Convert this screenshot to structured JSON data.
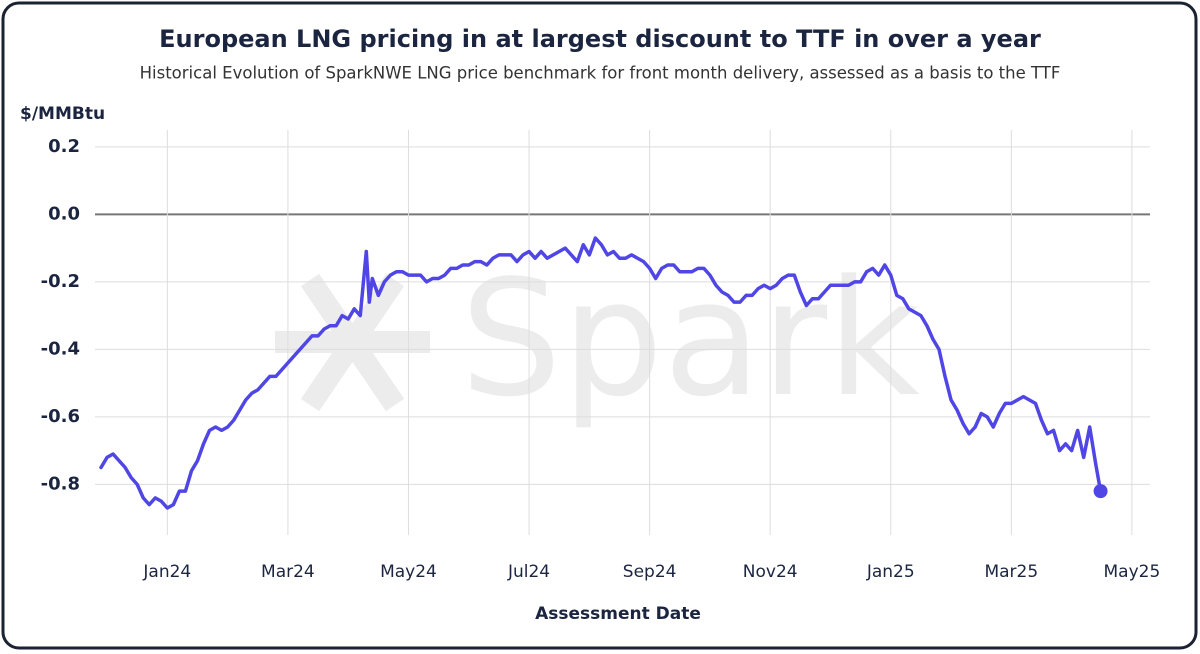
{
  "chart_data": {
    "type": "line",
    "title": "European LNG pricing in at largest discount to TTF in over a year",
    "subtitle": "Historical Evolution of SparkNWE LNG price benchmark for front month delivery, assessed as a basis to the TTF",
    "y_label": "$/MMBtu",
    "x_label": "Assessment Date",
    "watermark": "Spark",
    "color": "#4f46e5",
    "grid": true,
    "zero_line": true,
    "end_marker": true,
    "xlim": [
      -1.2,
      16.3
    ],
    "ylim": [
      -0.95,
      0.25
    ],
    "xticks": [
      {
        "value": 0,
        "label": "Jan24"
      },
      {
        "value": 2,
        "label": "Mar24"
      },
      {
        "value": 4,
        "label": "May24"
      },
      {
        "value": 6,
        "label": "Jul24"
      },
      {
        "value": 8,
        "label": "Sep24"
      },
      {
        "value": 10,
        "label": "Nov24"
      },
      {
        "value": 12,
        "label": "Jan25"
      },
      {
        "value": 14,
        "label": "Mar25"
      },
      {
        "value": 16,
        "label": "May25"
      }
    ],
    "yticks": [
      0.2,
      {
        "value": 0,
        "label": "0.0"
      },
      -0.2,
      -0.4,
      -0.6,
      -0.8
    ],
    "x": [
      -1.1,
      -1.0,
      -0.9,
      -0.8,
      -0.7,
      -0.6,
      -0.5,
      -0.4,
      -0.3,
      -0.2,
      -0.1,
      0.0,
      0.1,
      0.2,
      0.3,
      0.4,
      0.5,
      0.6,
      0.7,
      0.8,
      0.9,
      1.0,
      1.1,
      1.2,
      1.3,
      1.4,
      1.5,
      1.6,
      1.7,
      1.8,
      1.9,
      2.0,
      2.1,
      2.2,
      2.3,
      2.4,
      2.5,
      2.6,
      2.7,
      2.8,
      2.9,
      3.0,
      3.1,
      3.2,
      3.3,
      3.35,
      3.4,
      3.5,
      3.6,
      3.7,
      3.8,
      3.9,
      4.0,
      4.1,
      4.2,
      4.3,
      4.4,
      4.5,
      4.6,
      4.7,
      4.8,
      4.9,
      5.0,
      5.1,
      5.2,
      5.3,
      5.4,
      5.5,
      5.6,
      5.7,
      5.8,
      5.9,
      6.0,
      6.1,
      6.2,
      6.3,
      6.4,
      6.5,
      6.6,
      6.7,
      6.8,
      6.9,
      7.0,
      7.1,
      7.2,
      7.3,
      7.4,
      7.5,
      7.6,
      7.7,
      7.8,
      7.9,
      8.0,
      8.1,
      8.2,
      8.3,
      8.4,
      8.5,
      8.6,
      8.7,
      8.8,
      8.9,
      9.0,
      9.1,
      9.2,
      9.3,
      9.4,
      9.5,
      9.6,
      9.7,
      9.8,
      9.9,
      10.0,
      10.1,
      10.2,
      10.3,
      10.4,
      10.5,
      10.6,
      10.7,
      10.8,
      10.9,
      11.0,
      11.1,
      11.2,
      11.3,
      11.4,
      11.5,
      11.6,
      11.7,
      11.8,
      11.9,
      12.0,
      12.1,
      12.2,
      12.3,
      12.4,
      12.5,
      12.6,
      12.7,
      12.8,
      12.9,
      13.0,
      13.1,
      13.2,
      13.3,
      13.4,
      13.5,
      13.6,
      13.7,
      13.8,
      13.9,
      14.0,
      14.1,
      14.2,
      14.3,
      14.4,
      14.5,
      14.6,
      14.7,
      14.8,
      14.9,
      15.0,
      15.1,
      15.2,
      15.3,
      15.4,
      15.48
    ],
    "values": [
      -0.75,
      -0.72,
      -0.71,
      -0.73,
      -0.75,
      -0.78,
      -0.8,
      -0.84,
      -0.86,
      -0.84,
      -0.85,
      -0.87,
      -0.86,
      -0.82,
      -0.82,
      -0.76,
      -0.73,
      -0.68,
      -0.64,
      -0.63,
      -0.64,
      -0.63,
      -0.61,
      -0.58,
      -0.55,
      -0.53,
      -0.52,
      -0.5,
      -0.48,
      -0.48,
      -0.46,
      -0.44,
      -0.42,
      -0.4,
      -0.38,
      -0.36,
      -0.36,
      -0.34,
      -0.33,
      -0.33,
      -0.3,
      -0.31,
      -0.28,
      -0.3,
      -0.11,
      -0.26,
      -0.19,
      -0.24,
      -0.2,
      -0.18,
      -0.17,
      -0.17,
      -0.18,
      -0.18,
      -0.18,
      -0.2,
      -0.19,
      -0.19,
      -0.18,
      -0.16,
      -0.16,
      -0.15,
      -0.15,
      -0.14,
      -0.14,
      -0.15,
      -0.13,
      -0.12,
      -0.12,
      -0.12,
      -0.14,
      -0.12,
      -0.11,
      -0.13,
      -0.11,
      -0.13,
      -0.12,
      -0.11,
      -0.1,
      -0.12,
      -0.14,
      -0.09,
      -0.12,
      -0.07,
      -0.09,
      -0.12,
      -0.11,
      -0.13,
      -0.13,
      -0.12,
      -0.13,
      -0.14,
      -0.16,
      -0.19,
      -0.16,
      -0.15,
      -0.15,
      -0.17,
      -0.17,
      -0.17,
      -0.16,
      -0.16,
      -0.18,
      -0.21,
      -0.23,
      -0.24,
      -0.26,
      -0.26,
      -0.24,
      -0.24,
      -0.22,
      -0.21,
      -0.22,
      -0.21,
      -0.19,
      -0.18,
      -0.18,
      -0.23,
      -0.27,
      -0.25,
      -0.25,
      -0.23,
      -0.21,
      -0.21,
      -0.21,
      -0.21,
      -0.2,
      -0.2,
      -0.17,
      -0.16,
      -0.18,
      -0.15,
      -0.18,
      -0.24,
      -0.25,
      -0.28,
      -0.29,
      -0.3,
      -0.33,
      -0.37,
      -0.4,
      -0.48,
      -0.55,
      -0.58,
      -0.62,
      -0.65,
      -0.63,
      -0.59,
      -0.6,
      -0.63,
      -0.59,
      -0.56,
      -0.56,
      -0.55,
      -0.54,
      -0.55,
      -0.56,
      -0.61,
      -0.65,
      -0.64,
      -0.7,
      -0.68,
      -0.7,
      -0.64,
      -0.72,
      -0.63,
      -0.74,
      -0.82
    ]
  }
}
